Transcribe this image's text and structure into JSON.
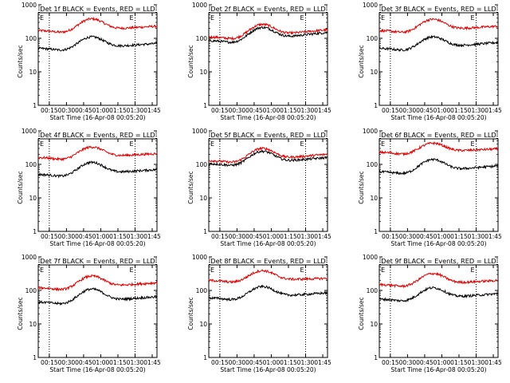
{
  "colors": {
    "events": "#000000",
    "lld": "#e00000",
    "axis": "#000000"
  },
  "panel_common": {
    "ylabel": "Counts/sec",
    "xlabel": "Start Time (16-Apr-08 00:05:20)",
    "yticks": [
      "1",
      "10",
      "100",
      "1000"
    ],
    "xticks": [
      "00:15",
      "00:30",
      "00:45",
      "01:00",
      "01:15",
      "01:30",
      "01:45"
    ],
    "marker_left": "E",
    "marker_right": "E",
    "dotted_lines_at": [
      "00:15",
      "01:30"
    ]
  },
  "chart_data": [
    {
      "type": "line",
      "title": "Det 1f BLACK = Events, RED = LLD",
      "x_range": [
        "00:05:20",
        "01:45"
      ],
      "ylim": [
        1,
        1000
      ],
      "y_scale": "log",
      "series": [
        {
          "color": "red",
          "base": 170,
          "peak": 380,
          "end": 230
        },
        {
          "color": "black",
          "base": 50,
          "peak": 110,
          "end": 70
        }
      ]
    },
    {
      "type": "line",
      "title": "Det 2f BLACK = Events, RED = LLD",
      "x_range": [
        "00:05:20",
        "01:45"
      ],
      "ylim": [
        1,
        1000
      ],
      "y_scale": "log",
      "series": [
        {
          "color": "red",
          "base": 110,
          "peak": 260,
          "end": 180
        },
        {
          "color": "black",
          "base": 85,
          "peak": 210,
          "end": 150
        }
      ]
    },
    {
      "type": "line",
      "title": "Det 3f BLACK = Events, RED = LLD",
      "x_range": [
        "00:05:20",
        "01:45"
      ],
      "ylim": [
        1,
        1000
      ],
      "y_scale": "log",
      "series": [
        {
          "color": "red",
          "base": 170,
          "peak": 370,
          "end": 230
        },
        {
          "color": "black",
          "base": 50,
          "peak": 110,
          "end": 75
        }
      ]
    },
    {
      "type": "line",
      "title": "Det 4f BLACK = Events, RED = LLD",
      "x_range": [
        "00:05:20",
        "01:45"
      ],
      "ylim": [
        1,
        1000
      ],
      "y_scale": "log",
      "series": [
        {
          "color": "red",
          "base": 160,
          "peak": 330,
          "end": 210
        },
        {
          "color": "black",
          "base": 50,
          "peak": 115,
          "end": 70
        }
      ]
    },
    {
      "type": "line",
      "title": "Det 5f BLACK = Events, RED = LLD",
      "x_range": [
        "00:05:20",
        "01:45"
      ],
      "ylim": [
        1,
        1000
      ],
      "y_scale": "log",
      "series": [
        {
          "color": "red",
          "base": 130,
          "peak": 300,
          "end": 200
        },
        {
          "color": "black",
          "base": 105,
          "peak": 245,
          "end": 160
        }
      ]
    },
    {
      "type": "line",
      "title": "Det 6f BLACK = Events, RED = LLD",
      "x_range": [
        "00:05:20",
        "01:45"
      ],
      "ylim": [
        1,
        1000
      ],
      "y_scale": "log",
      "series": [
        {
          "color": "red",
          "base": 230,
          "peak": 430,
          "end": 290
        },
        {
          "color": "black",
          "base": 60,
          "peak": 140,
          "end": 90
        }
      ]
    },
    {
      "type": "line",
      "title": "Det 7f BLACK = Events, RED = LLD",
      "x_range": [
        "00:05:20",
        "01:45"
      ],
      "ylim": [
        1,
        1000
      ],
      "y_scale": "log",
      "series": [
        {
          "color": "red",
          "base": 120,
          "peak": 270,
          "end": 170
        },
        {
          "color": "black",
          "base": 45,
          "peak": 110,
          "end": 65
        }
      ]
    },
    {
      "type": "line",
      "title": "Det 8f BLACK = Events, RED = LLD",
      "x_range": [
        "00:05:20",
        "01:45"
      ],
      "ylim": [
        1,
        1000
      ],
      "y_scale": "log",
      "series": [
        {
          "color": "red",
          "base": 200,
          "peak": 390,
          "end": 230
        },
        {
          "color": "black",
          "base": 60,
          "peak": 130,
          "end": 85
        }
      ]
    },
    {
      "type": "line",
      "title": "Det 9f BLACK = Events, RED = LLD",
      "x_range": [
        "00:05:20",
        "01:45"
      ],
      "ylim": [
        1,
        1000
      ],
      "y_scale": "log",
      "series": [
        {
          "color": "red",
          "base": 150,
          "peak": 320,
          "end": 200
        },
        {
          "color": "black",
          "base": 55,
          "peak": 120,
          "end": 80
        }
      ]
    }
  ]
}
